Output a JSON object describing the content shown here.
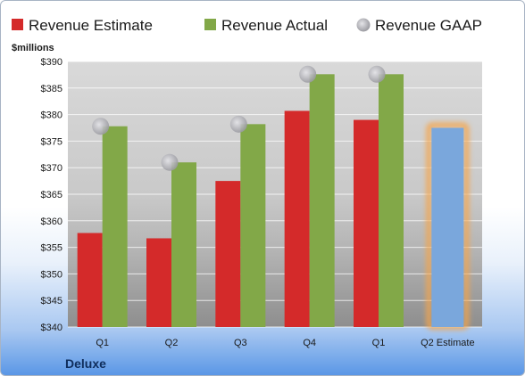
{
  "chart_data": {
    "type": "bar",
    "title": "",
    "ylabel": "$millions",
    "company": "Deluxe",
    "categories": [
      "Q1",
      "Q2",
      "Q3",
      "Q4",
      "Q1",
      "Q2 Estimate"
    ],
    "ylim": [
      340,
      390
    ],
    "yticks": [
      340,
      345,
      350,
      355,
      360,
      365,
      370,
      375,
      380,
      385,
      390
    ],
    "ytick_labels": [
      "$340",
      "$345",
      "$350",
      "$355",
      "$360",
      "$365",
      "$370",
      "$375",
      "$380",
      "$385",
      "$390"
    ],
    "grid": true,
    "legend_position": "top",
    "series": [
      {
        "name": "Revenue Estimate",
        "type": "bar",
        "color": "#d42a2a",
        "values": [
          357.7,
          356.7,
          367.5,
          380.7,
          379.0,
          null
        ]
      },
      {
        "name": "Revenue Actual",
        "type": "bar",
        "color": "#82a848",
        "values": [
          377.8,
          371.0,
          378.2,
          387.6,
          387.6,
          null
        ]
      },
      {
        "name": "Revenue GAAP",
        "type": "marker",
        "color": "#b4b4b8",
        "values": [
          377.8,
          371.0,
          378.2,
          387.6,
          387.6,
          null
        ]
      }
    ],
    "estimate_bar": {
      "category": "Q2 Estimate",
      "value": 377.5,
      "color": "#7aa7dc",
      "glow_color": "#f4a54a"
    }
  }
}
